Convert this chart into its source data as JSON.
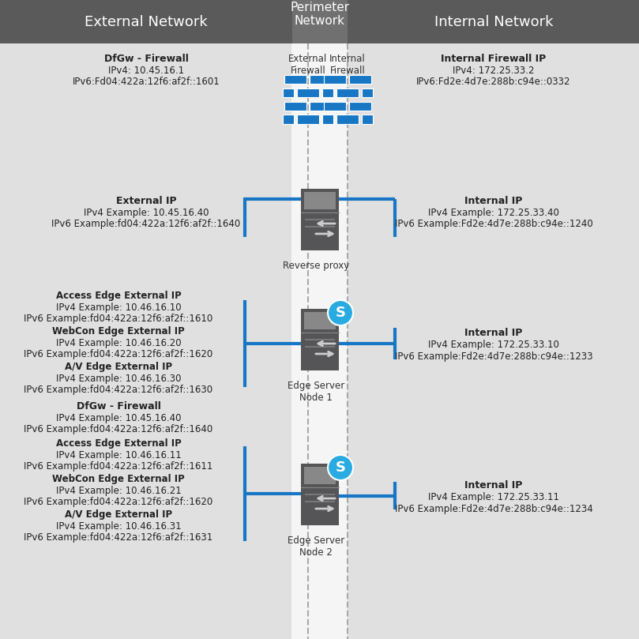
{
  "bg_color": "#e0e0e0",
  "header_color": "#5a5a5a",
  "perimeter_header_color": "#707070",
  "white_band_color": "#f5f5f5",
  "dashed_line_color": "#aaaaaa",
  "blue_line_color": "#1777c5",
  "fw_color": "#1777c5",
  "server_body": "#555558",
  "server_top": "#888888",
  "title_external": "External Network",
  "title_perimeter": "Perimeter\nNetwork",
  "title_internal": "Internal Network",
  "firewall_ext_label": "External\nFirewall",
  "firewall_int_label": "Internal\nFirewall",
  "dfgw_title": "DfGw - Firewall",
  "dfgw_ipv4": "IPv4: 10.45.16.1",
  "dfgw_ipv6": "IPv6:Fd04:422a:12f6:af2f::1601",
  "int_fw_title": "Internal Firewall IP",
  "int_fw_ipv4": "IPv4: 172.25.33.2",
  "int_fw_ipv6": "IPv6:Fd2e:4d7e:288b:c94e::0332",
  "rproxy_ext_title": "External IP",
  "rproxy_ext_ipv4": "IPv4 Example: 10.45.16.40",
  "rproxy_ext_ipv6": "IPv6 Example:fd04:422a:12f6:af2f::1640",
  "rproxy_int_title": "Internal IP",
  "rproxy_int_ipv4": "IPv4 Example: 172.25.33.40",
  "rproxy_int_ipv6": "IPv6 Example:Fd2e:4d7e:288b:c94e::1240",
  "rproxy_label": "Reverse proxy",
  "edge1_access_title": "Access Edge External IP",
  "edge1_access_ipv4": "IPv4 Example: 10.46.16.10",
  "edge1_access_ipv6": "IPv6 Example:fd04:422a:12f6:af2f::1610",
  "edge1_webcon_title": "WebCon Edge External IP",
  "edge1_webcon_ipv4": "IPv4 Example: 10.46.16.20",
  "edge1_webcon_ipv6": "IPv6 Example:fd04:422a:12f6:af2f::1620",
  "edge1_av_title": "A/V Edge External IP",
  "edge1_av_ipv4": "IPv4 Example: 10.46.16.30",
  "edge1_av_ipv6": "IPv6 Example:fd04:422a:12f6:af2f::1630",
  "edge1_int_title": "Internal IP",
  "edge1_int_ipv4": "IPv4 Example: 172.25.33.10",
  "edge1_int_ipv6": "IPv6 Example:Fd2e:4d7e:288b:c94e::1233",
  "edge1_label": "Edge Server\nNode 1",
  "dfgw2_title": "DfGw - Firewall",
  "dfgw2_ipv4": "IPv4 Example: 10.45.16.40",
  "dfgw2_ipv6": "IPv6 Example:fd04:422a:12f6:af2f::1640",
  "edge2_access_title": "Access Edge External IP",
  "edge2_access_ipv4": "IPv4 Example: 10.46.16.11",
  "edge2_access_ipv6": "IPv6 Example:fd04:422a:12f6:af2f::1611",
  "edge2_webcon_title": "WebCon Edge External IP",
  "edge2_webcon_ipv4": "IPv4 Example: 10.46.16.21",
  "edge2_webcon_ipv6": "IPv6 Example:fd04:422a:12f6:af2f::1620",
  "edge2_av_title": "A/V Edge External IP",
  "edge2_av_ipv4": "IPv4 Example: 10.46.16.31",
  "edge2_av_ipv6": "IPv6 Example:fd04:422a:12f6:af2f::1631",
  "edge2_int_title": "Internal IP",
  "edge2_int_ipv4": "IPv4 Example: 172.25.33.11",
  "edge2_int_ipv6": "IPv6 Example:Fd2e:4d7e:288b:c94e::1234",
  "edge2_label": "Edge Server\nNode 2"
}
